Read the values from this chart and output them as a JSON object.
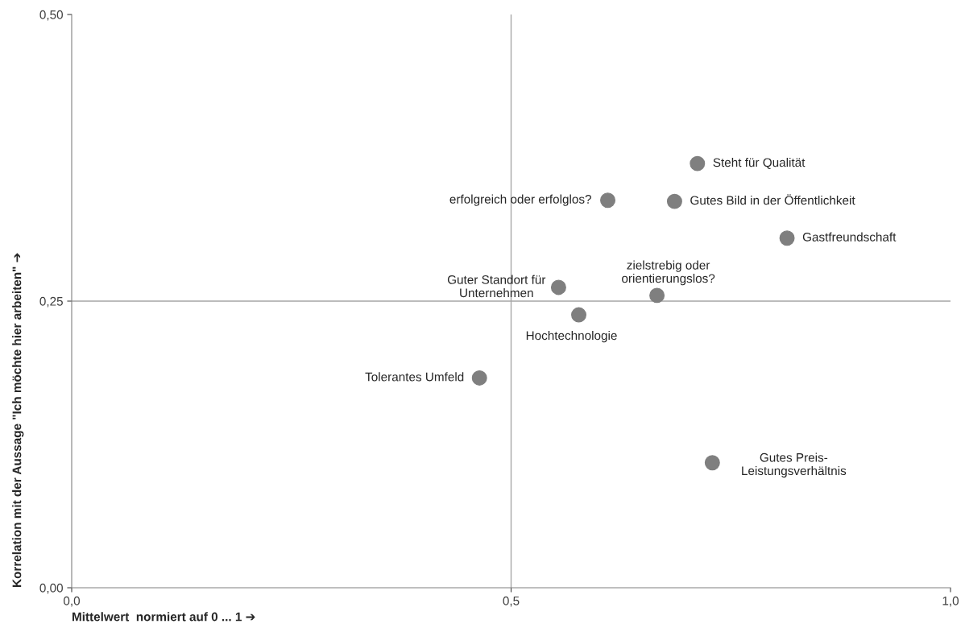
{
  "chart_data": {
    "type": "scatter",
    "xlabel": "Mittelwert  normiert auf 0 ... 1 ➔",
    "ylabel": "Korrelation mit der Aussage \"Ich möchte hier arbeiten\" ➔",
    "series": [
      {
        "color": "#7f7f7f",
        "x": [
          0.712,
          0.61,
          0.686,
          0.814,
          0.554,
          0.666,
          0.577,
          0.464,
          0.729
        ],
        "values": [
          0.37,
          0.338,
          0.337,
          0.305,
          0.262,
          0.255,
          0.238,
          0.183,
          0.109
        ]
      }
    ],
    "annotations": [
      {
        "text": "Steht für Qualität",
        "x": 0.712,
        "y": 0.37
      },
      {
        "text": "erfolgreich oder erfolglos?",
        "x": 0.61,
        "y": 0.338
      },
      {
        "text": "Gutes Bild in der Öffentlichkeit",
        "x": 0.686,
        "y": 0.337
      },
      {
        "text": "Gastfreundschaft",
        "x": 0.814,
        "y": 0.305
      },
      {
        "text": "Guter Standort für\nUnternehmen",
        "x": 0.554,
        "y": 0.262
      },
      {
        "text": "zielstrebig oder\norientierungslos?",
        "x": 0.666,
        "y": 0.255
      },
      {
        "text": "Hochtechnologie",
        "x": 0.577,
        "y": 0.238
      },
      {
        "text": "Tolerantes Umfeld",
        "x": 0.464,
        "y": 0.183
      },
      {
        "text": "Gutes Preis-\nLeistungsverhältnis",
        "x": 0.729,
        "y": 0.109
      }
    ],
    "xlim": [
      0,
      1
    ],
    "ylim": [
      0,
      0.5
    ],
    "xticks": [
      {
        "value": 0,
        "label": "0,0"
      },
      {
        "value": 0.5,
        "label": "0,5"
      },
      {
        "value": 1,
        "label": "1,0"
      }
    ],
    "yticks": [
      {
        "value": 0,
        "label": "0,00"
      },
      {
        "value": 0.25,
        "label": "0,25"
      },
      {
        "value": 0.5,
        "label": "0,50"
      }
    ],
    "ref_lines": [
      {
        "axis": "x",
        "value": 0.5,
        "color": "#a6a6a6"
      },
      {
        "axis": "y",
        "value": 0.25,
        "color": "#a6a6a6"
      }
    ],
    "marker": "circle",
    "grid": false,
    "legend": false
  }
}
